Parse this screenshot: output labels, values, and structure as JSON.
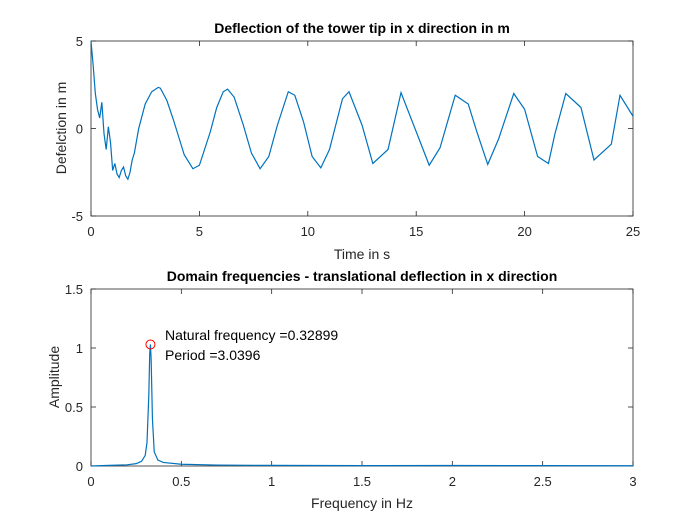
{
  "chart_data": [
    {
      "type": "line",
      "title": "Deflection of the tower tip in x direction in m",
      "xlabel": "Time in s",
      "ylabel": "Defelction in m",
      "xlim": [
        0,
        25
      ],
      "ylim": [
        -5,
        5
      ],
      "xticks": [
        "0",
        "5",
        "10",
        "15",
        "20",
        "25"
      ],
      "yticks": [
        "-5",
        "0",
        "5"
      ],
      "grid": false,
      "line_color": "#0072bd",
      "series": [
        {
          "x": [
            0,
            0.1,
            0.2,
            0.3,
            0.4,
            0.5,
            0.6,
            0.7,
            0.8,
            0.9,
            1.0,
            1.1,
            1.2,
            1.3,
            1.4,
            1.5,
            1.6,
            1.7,
            1.8,
            1.9,
            2.0,
            2.2,
            2.5,
            2.8,
            3.1,
            3.2,
            3.5,
            3.8,
            4.0,
            4.3,
            4.7,
            5.0,
            5.5,
            5.8,
            6.1,
            6.3,
            6.6,
            7.0,
            7.4,
            7.8,
            8.2,
            8.6,
            9.1,
            9.4,
            9.8,
            10.2,
            10.6,
            11.0,
            11.6,
            11.9,
            12.5,
            13.0,
            13.7,
            14.3,
            15.1,
            15.6,
            16.1,
            16.8,
            17.4,
            17.8,
            18.3,
            18.8,
            19.5,
            20.0,
            20.6,
            21.1,
            21.4,
            21.9,
            22.6,
            23.2,
            24.0,
            24.4,
            25.0
          ],
          "y": [
            5.0,
            3.6,
            2.0,
            1.1,
            0.6,
            1.5,
            -0.3,
            -1.2,
            0.1,
            -0.8,
            -2.4,
            -2.0,
            -2.6,
            -2.8,
            -2.4,
            -2.2,
            -2.7,
            -2.9,
            -2.5,
            -1.8,
            -1.4,
            0.0,
            1.4,
            2.1,
            2.35,
            2.3,
            1.6,
            0.5,
            -0.3,
            -1.5,
            -2.3,
            -2.1,
            -0.2,
            1.2,
            2.1,
            2.25,
            1.8,
            0.3,
            -1.4,
            -2.3,
            -1.6,
            0.2,
            2.1,
            1.9,
            0.4,
            -1.6,
            -2.25,
            -1.2,
            1.7,
            2.1,
            0.2,
            -2.0,
            -1.2,
            2.05,
            -0.5,
            -2.1,
            -1.1,
            1.9,
            1.4,
            -0.2,
            -2.05,
            -0.6,
            2.0,
            1.1,
            -1.6,
            -2.0,
            -0.3,
            2.0,
            1.2,
            -1.8,
            -0.9,
            1.9,
            0.7
          ]
        }
      ]
    },
    {
      "type": "line",
      "title": "Domain frequencies - translational deflection in x direction",
      "xlabel": "Frequency in Hz",
      "ylabel": "Amplitude",
      "xlim": [
        0,
        3
      ],
      "ylim": [
        0,
        1.5
      ],
      "xticks": [
        "0",
        "0.5",
        "1",
        "1.5",
        "2",
        "2.5",
        "3"
      ],
      "yticks": [
        "0",
        "0.5",
        "1",
        "1.5"
      ],
      "grid": false,
      "line_color": "#0072bd",
      "marker_color": "#ff0000",
      "series": [
        {
          "x": [
            0,
            0.1,
            0.2,
            0.25,
            0.28,
            0.3,
            0.31,
            0.32,
            0.325,
            0.329,
            0.333,
            0.34,
            0.35,
            0.37,
            0.4,
            0.5,
            0.7,
            1.0,
            1.5,
            2.0,
            2.5,
            3.0
          ],
          "y": [
            0.0,
            0.005,
            0.01,
            0.02,
            0.04,
            0.09,
            0.2,
            0.6,
            0.95,
            1.03,
            0.9,
            0.4,
            0.12,
            0.05,
            0.03,
            0.015,
            0.008,
            0.005,
            0.003,
            0.004,
            0.003,
            0.002
          ]
        }
      ],
      "peak": {
        "x": 0.32899,
        "y": 1.03
      },
      "annotations": [
        "Natural frequency =0.32899",
        "Period =3.0396"
      ]
    }
  ]
}
